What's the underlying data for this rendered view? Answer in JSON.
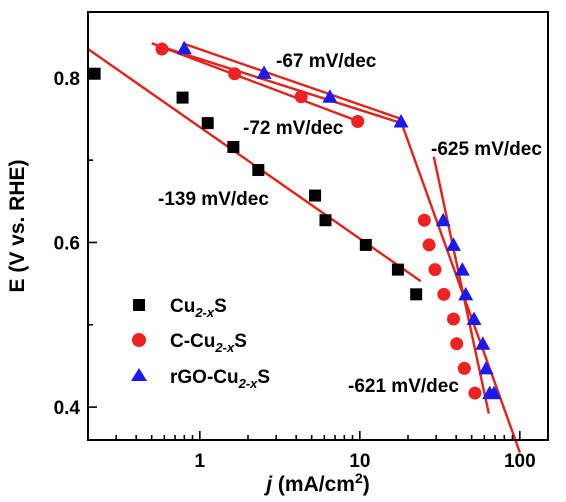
{
  "chart_data": {
    "type": "scatter",
    "xlabel": {
      "italic": "j",
      "main": " (mA/cm",
      "sup": "2",
      "end": ")"
    },
    "ylabel": "E (V vs. RHE)",
    "xscale": "log",
    "xlim": [
      0.2,
      150
    ],
    "ylim": [
      0.36,
      0.88
    ],
    "xticks": [
      1,
      10,
      100
    ],
    "xtick_labels": [
      "1",
      "10",
      "100"
    ],
    "yticks": [
      0.4,
      0.6,
      0.8
    ],
    "ytick_labels": [
      "0.4",
      "0.6",
      "0.8"
    ],
    "colors": {
      "cu2s": "#000000",
      "c_cu2s": "#ee2222",
      "rgo": "#1a1aee",
      "fit": "#e2231a"
    },
    "series": [
      {
        "name": {
          "base": "Cu",
          "sub": "2-x",
          "end": "S"
        },
        "marker": "square",
        "color": "#000000",
        "x": [
          0.22,
          0.78,
          1.12,
          1.62,
          2.32,
          5.25,
          6.1,
          10.9,
          17.3,
          22.5
        ],
        "y": [
          0.805,
          0.776,
          0.745,
          0.716,
          0.688,
          0.657,
          0.627,
          0.597,
          0.567,
          0.537
        ]
      },
      {
        "name": {
          "prefix": "C-Cu",
          "sub": "2-x",
          "end": "S"
        },
        "marker": "circle",
        "color": "#ee2222",
        "x": [
          0.58,
          1.65,
          4.3,
          9.7,
          25.3,
          27.1,
          29.5,
          33.5,
          38.5,
          40.3,
          45.0,
          52.4
        ],
        "y": [
          0.835,
          0.805,
          0.777,
          0.747,
          0.627,
          0.597,
          0.567,
          0.537,
          0.507,
          0.477,
          0.447,
          0.417
        ]
      },
      {
        "name": {
          "prefix": "rGO-Cu",
          "sub": "2-x",
          "end": "S"
        },
        "marker": "triangle",
        "color": "#1a1aee",
        "x": [
          0.8,
          2.52,
          6.5,
          18.1,
          33.2,
          38.5,
          43.7,
          45.9,
          51.7,
          58.7,
          61.6,
          64.8,
          69.0
        ],
        "y": [
          0.836,
          0.806,
          0.777,
          0.747,
          0.627,
          0.597,
          0.567,
          0.537,
          0.507,
          0.477,
          0.447,
          0.417,
          0.417
        ]
      }
    ],
    "fit_lines": [
      {
        "x": [
          0.2,
          24
        ],
        "y": [
          0.835,
          0.553
        ]
      },
      {
        "x": [
          0.5,
          10.5
        ],
        "y": [
          0.842,
          0.745
        ]
      },
      {
        "x": [
          0.53,
          18.2
        ],
        "y": [
          0.84,
          0.745
        ]
      },
      {
        "x": [
          17.7,
          100
        ],
        "y": [
          0.752,
          0.345
        ]
      },
      {
        "x": [
          29,
          64
        ],
        "y": [
          0.704,
          0.392
        ]
      },
      {
        "x": [
          0.78,
          18.2
        ],
        "y": [
          0.842,
          0.75
        ]
      }
    ],
    "annotations": [
      "-67 mV/dec",
      "-72 mV/dec",
      "-625 mV/dec",
      "-139 mV/dec",
      "-621 mV/dec"
    ]
  }
}
